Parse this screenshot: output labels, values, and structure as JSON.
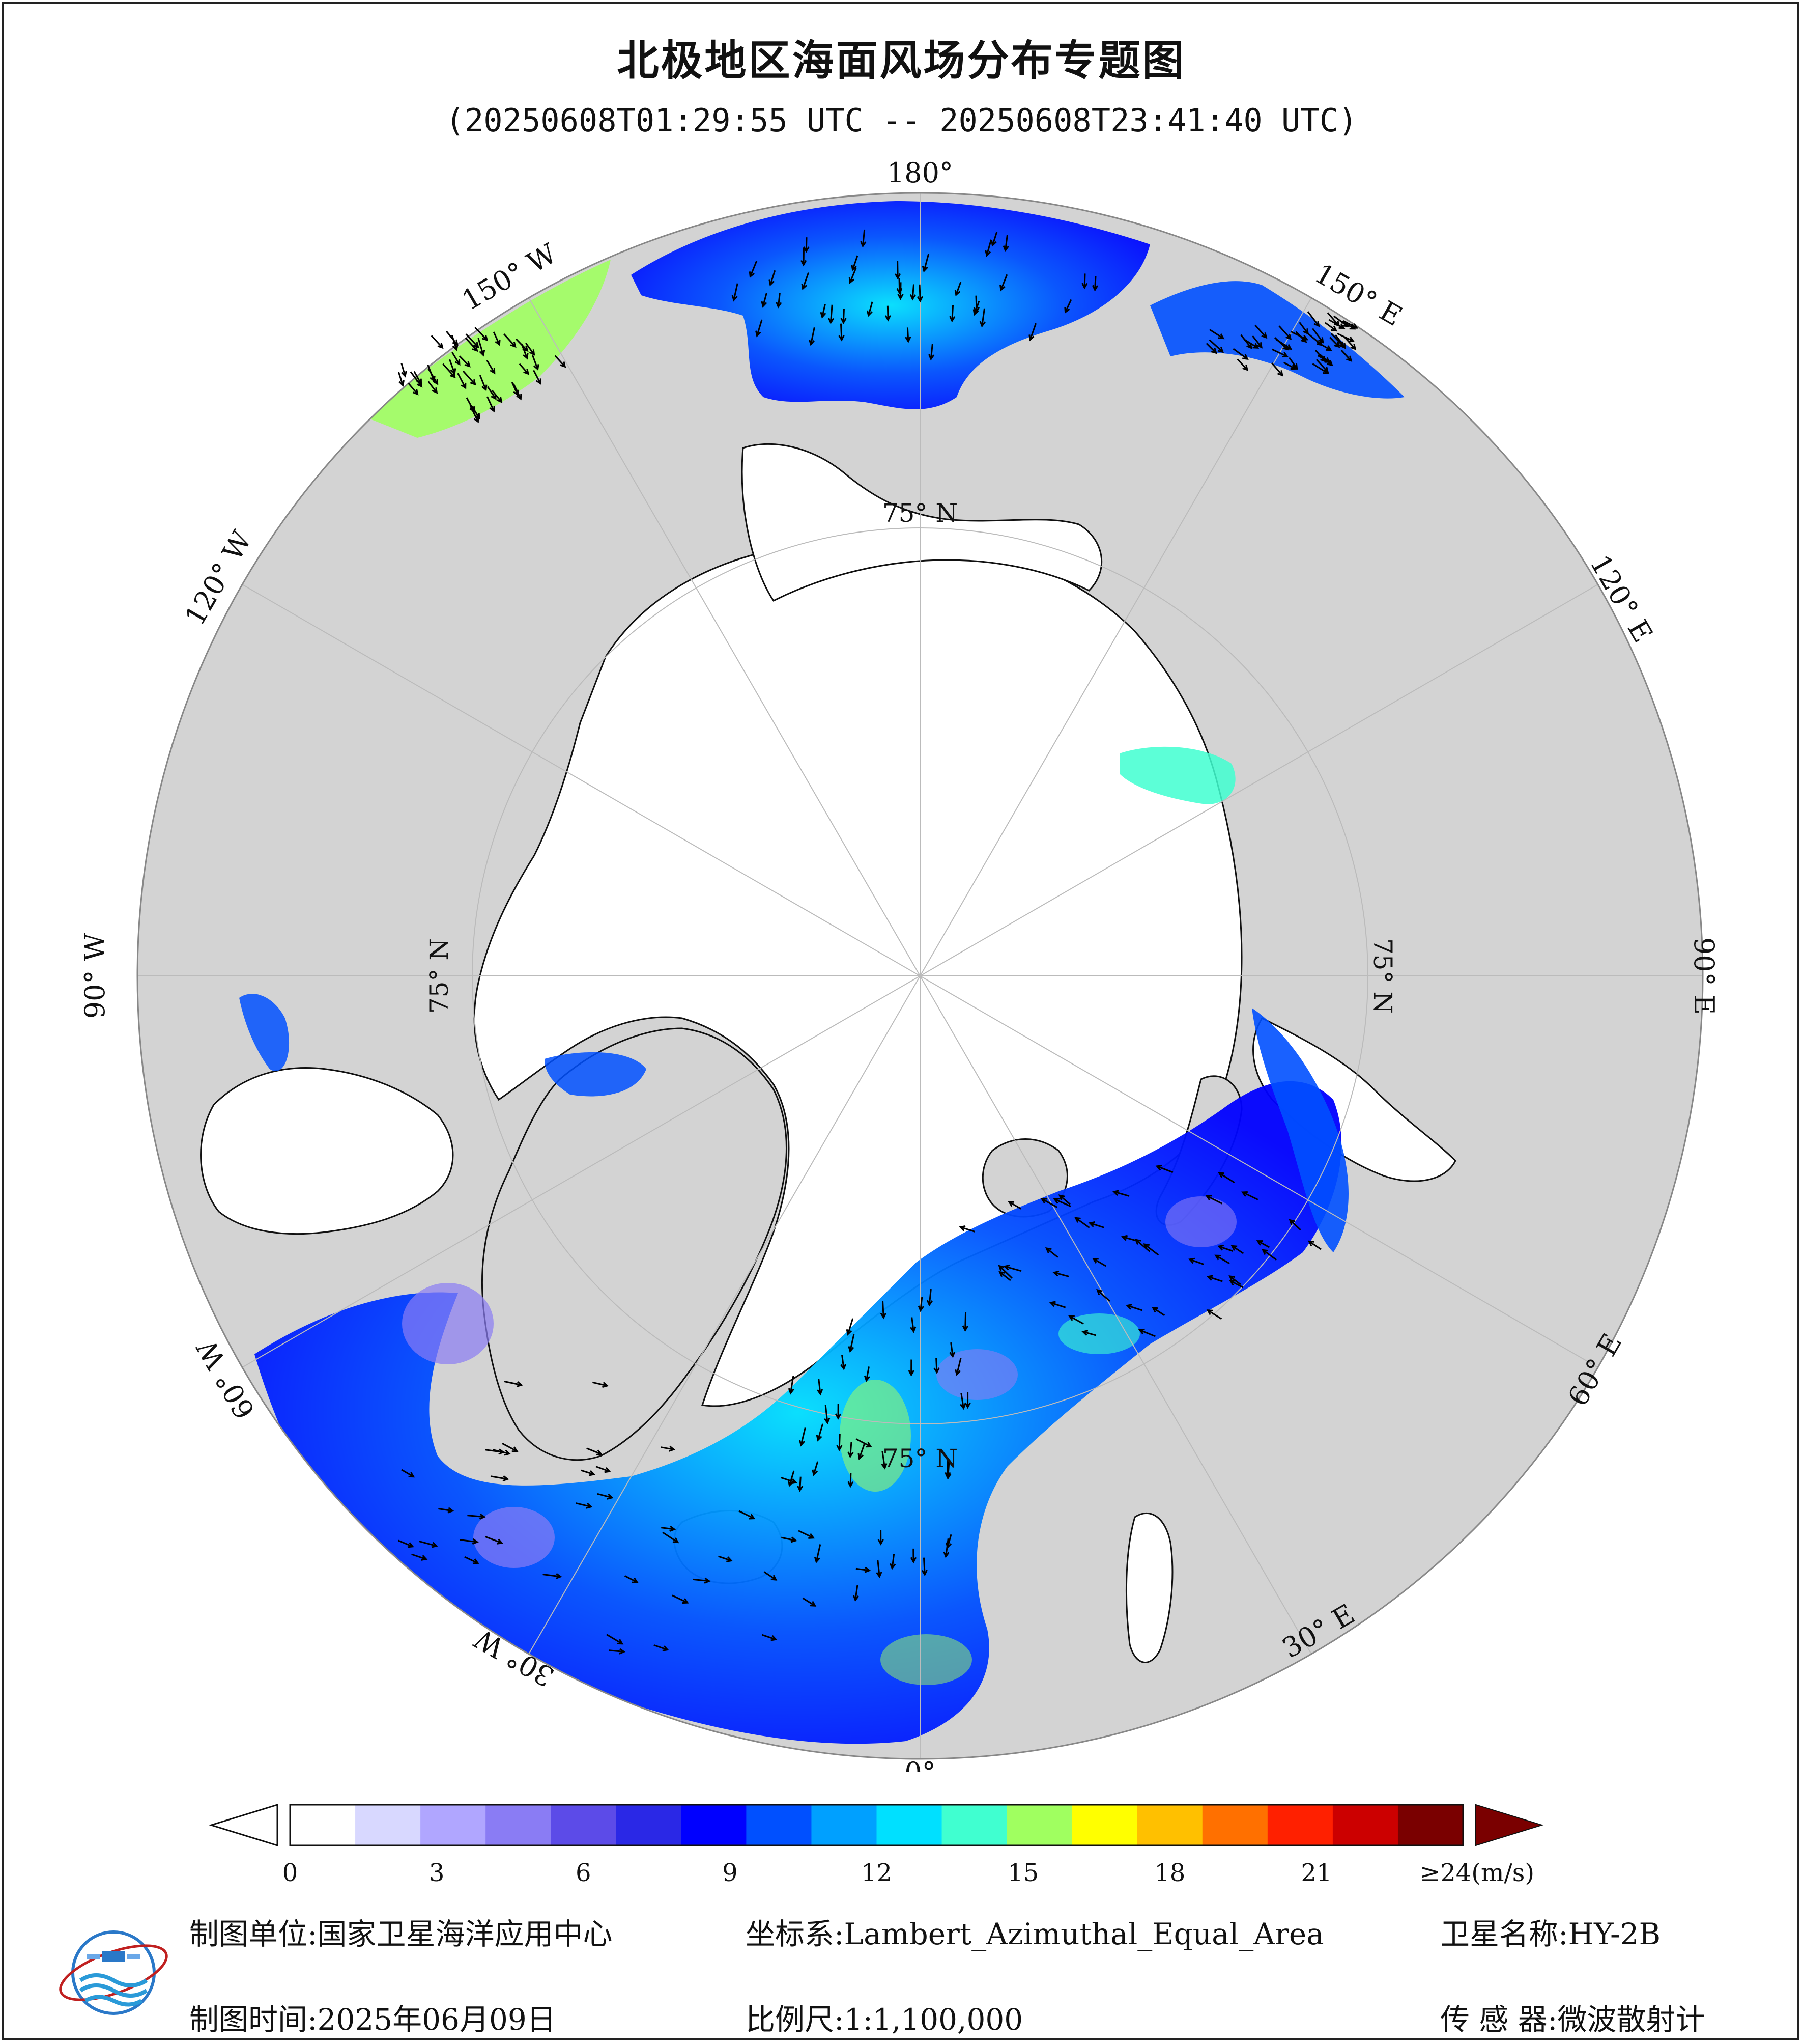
{
  "title": "北极地区海面风场分布专题图",
  "time_range": "(20250608T01:29:55 UTC -- 20250608T23:41:40 UTC)",
  "map": {
    "projection_note": "Lambert Azimuthal Equal Area, North Polar",
    "longitude_labels": [
      "180°",
      "150° E",
      "120° E",
      "90° E",
      "60° E",
      "30° E",
      "0°",
      "30° W",
      "60° W",
      "90° W",
      "120° W",
      "150° W"
    ],
    "latitude_label": "75° N",
    "colors": {
      "land": "#d3d3d3",
      "ice": "#ffffff",
      "border": "#000000"
    }
  },
  "colorbar": {
    "unit_label": "≥24(m/s)",
    "ticks": [
      "0",
      "3",
      "6",
      "9",
      "12",
      "15",
      "18",
      "21"
    ],
    "min": 0,
    "max": 24,
    "colors": [
      "#ffffff",
      "#d8d8ff",
      "#b0a6ff",
      "#8a7cf4",
      "#5c4be8",
      "#2a28e6",
      "#0000ff",
      "#0050ff",
      "#00a0ff",
      "#00e0ff",
      "#40ffd0",
      "#a0ff60",
      "#ffff00",
      "#ffc000",
      "#ff7000",
      "#ff2000",
      "#cc0000",
      "#7a0000"
    ]
  },
  "footer": {
    "unit_label": "制图单位:",
    "unit_value": "国家卫星海洋应用中心",
    "crs_label": "坐标系:",
    "crs_value": "Lambert_Azimuthal_Equal_Area",
    "satellite_label": "卫星名称:",
    "satellite_value": "HY-2B",
    "date_label": "制图时间:",
    "date_value": "2025年06月09日",
    "scale_label": "比例尺:",
    "scale_value": "1:1,100,000",
    "sensor_label": "传 感 器:",
    "sensor_value": "微波散射计"
  }
}
